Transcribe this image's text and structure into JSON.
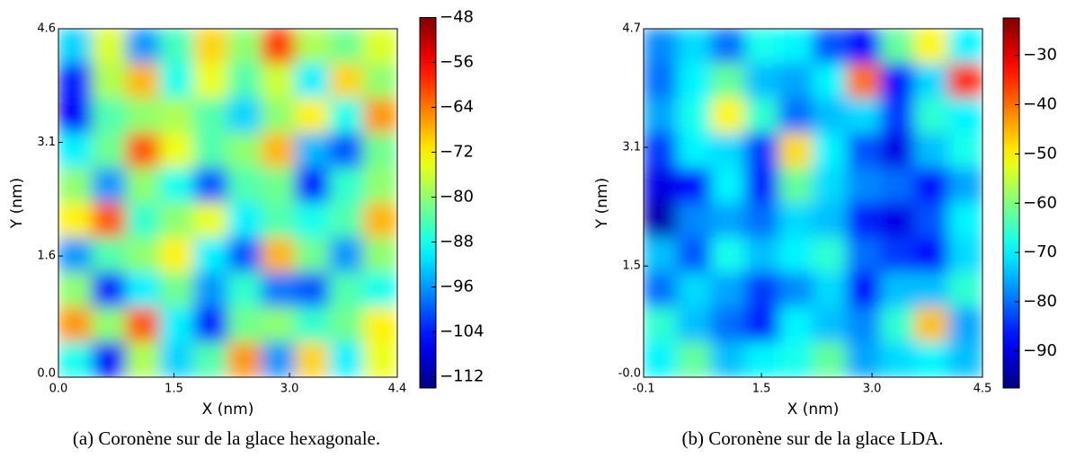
{
  "chart_data": [
    {
      "type": "heatmap",
      "colormap": "jet",
      "x_label": "X (nm)",
      "y_label": "Y (nm)",
      "caption": "(a) Coronène sur de la glace hexagonale.",
      "xlim": [
        0,
        4.4
      ],
      "ylim": [
        0,
        4.6
      ],
      "xticks": [
        {
          "value": 0,
          "label": "0.0"
        },
        1.5,
        {
          "value": 3,
          "label": "3.0"
        },
        4.4
      ],
      "yticks": [
        {
          "value": 0,
          "label": "0.0"
        },
        1.6,
        3.1,
        4.6
      ],
      "zlim": [
        -114,
        -48
      ],
      "zticks": [
        {
          "value": -48,
          "label": "−48"
        },
        {
          "value": -56,
          "label": "−56"
        },
        {
          "value": -64,
          "label": "−64"
        },
        {
          "value": -72,
          "label": "−72"
        },
        {
          "value": -80,
          "label": "−80"
        },
        {
          "value": -88,
          "label": "−88"
        },
        {
          "value": -96,
          "label": "−96"
        },
        {
          "value": -104,
          "label": "−104"
        },
        {
          "value": -112,
          "label": "−112"
        }
      ],
      "z": [
        [
          -92,
          -75,
          -96,
          -85,
          -70,
          -80,
          -60,
          -78,
          -82,
          -75
        ],
        [
          -104,
          -78,
          -68,
          -88,
          -74,
          -84,
          -76,
          -90,
          -70,
          -80
        ],
        [
          -106,
          -84,
          -80,
          -78,
          -84,
          -92,
          -80,
          -72,
          -88,
          -66
        ],
        [
          -90,
          -82,
          -62,
          -74,
          -84,
          -80,
          -68,
          -94,
          -100,
          -82
        ],
        [
          -80,
          -96,
          -80,
          -88,
          -100,
          -84,
          -82,
          -104,
          -86,
          -80
        ],
        [
          -72,
          -62,
          -86,
          -80,
          -74,
          -90,
          -84,
          -88,
          -84,
          -68
        ],
        [
          -96,
          -84,
          -80,
          -72,
          -90,
          -100,
          -68,
          -82,
          -96,
          -80
        ],
        [
          -80,
          -104,
          -90,
          -82,
          -96,
          -86,
          -98,
          -100,
          -84,
          -88
        ],
        [
          -66,
          -80,
          -62,
          -90,
          -104,
          -82,
          -80,
          -86,
          -82,
          -72
        ],
        [
          -88,
          -106,
          -78,
          -92,
          -84,
          -66,
          -96,
          -70,
          -90,
          -74
        ]
      ]
    },
    {
      "type": "heatmap",
      "colormap": "jet",
      "x_label": "X (nm)",
      "y_label": "Y (nm)",
      "caption": "(b) Coronène sur de la glace LDA.",
      "xlim": [
        -0.1,
        4.5
      ],
      "ylim": [
        0,
        4.7
      ],
      "xticks": [
        -0.1,
        1.5,
        {
          "value": 3,
          "label": "3.0"
        },
        4.5
      ],
      "yticks": [
        {
          "value": 0,
          "label": "-0.0"
        },
        1.5,
        3.1,
        4.7
      ],
      "zlim": [
        -97.5,
        -22.4
      ],
      "zticks": [
        {
          "value": -30,
          "label": "−30"
        },
        {
          "value": -40,
          "label": "−40"
        },
        {
          "value": -50,
          "label": "−50"
        },
        {
          "value": -60,
          "label": "−60"
        },
        {
          "value": -70,
          "label": "−70"
        },
        {
          "value": -80,
          "label": "−80"
        },
        {
          "value": -90,
          "label": "−90"
        }
      ],
      "z": [
        [
          -78,
          -72,
          -80,
          -68,
          -70,
          -82,
          -88,
          -62,
          -50,
          -70
        ],
        [
          -80,
          -70,
          -62,
          -74,
          -76,
          -70,
          -40,
          -88,
          -72,
          -35
        ],
        [
          -76,
          -68,
          -50,
          -66,
          -80,
          -74,
          -72,
          -84,
          -66,
          -70
        ],
        [
          -84,
          -70,
          -72,
          -84,
          -48,
          -70,
          -82,
          -90,
          -74,
          -68
        ],
        [
          -90,
          -88,
          -70,
          -86,
          -62,
          -72,
          -78,
          -80,
          -88,
          -76
        ],
        [
          -94,
          -78,
          -76,
          -80,
          -72,
          -74,
          -86,
          -90,
          -82,
          -70
        ],
        [
          -74,
          -82,
          -68,
          -74,
          -70,
          -66,
          -80,
          -84,
          -88,
          -72
        ],
        [
          -80,
          -72,
          -76,
          -84,
          -78,
          -72,
          -88,
          -74,
          -74,
          -66
        ],
        [
          -66,
          -74,
          -80,
          -86,
          -70,
          -74,
          -78,
          -66,
          -46,
          -76
        ],
        [
          -70,
          -62,
          -74,
          -70,
          -68,
          -62,
          -76,
          -72,
          -70,
          -74
        ]
      ]
    }
  ]
}
